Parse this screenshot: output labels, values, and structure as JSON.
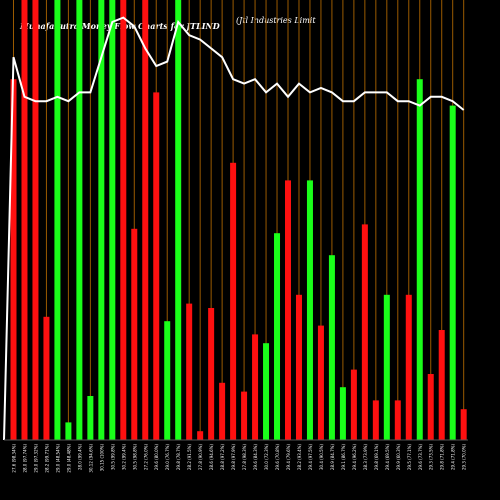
{
  "header": {
    "title": "MunafaSutra Money Flow Charts for JTLIND",
    "subtitle": "(Jtl Industries Limit"
  },
  "chart_data": {
    "type": "bar",
    "title": "MunafaSutra Money Flow Charts for JTLIND",
    "subtitle": "(Jtl Industries Limit",
    "grid": "vertical",
    "series": [
      {
        "colors": [
          "red",
          "red",
          "red",
          "red",
          "green",
          "green",
          "green",
          "green",
          "green",
          "green",
          "red",
          "red",
          "red",
          "red",
          "green",
          "green",
          "red",
          "red",
          "red",
          "red",
          "red",
          "red",
          "red",
          "green",
          "green",
          "red",
          "red",
          "green",
          "red",
          "green",
          "green",
          "red",
          "red",
          "red",
          "green",
          "red",
          "red",
          "green",
          "red",
          "red",
          "green",
          "red"
        ],
        "values": [
          82,
          100,
          100,
          28,
          100,
          4,
          100,
          10,
          100,
          100,
          100,
          48,
          100,
          79,
          27,
          100,
          31,
          2,
          30,
          13,
          63,
          11,
          24,
          22,
          47,
          59,
          33,
          59,
          26,
          42,
          12,
          16,
          49,
          9,
          33,
          9,
          33,
          82,
          15,
          25,
          76,
          7
        ]
      }
    ],
    "line": [
      87,
      78,
      77,
      77,
      78,
      77,
      79,
      79,
      87,
      95,
      96,
      94,
      89,
      85,
      86,
      95,
      92,
      91,
      89,
      87,
      82,
      81,
      82,
      79,
      81,
      78,
      81,
      79,
      80,
      79,
      77,
      77,
      79,
      79,
      79,
      77,
      77,
      76,
      78,
      78,
      77,
      75
    ],
    "x_labels": [
      "27.6 (98.34%)",
      "28.0 (97.74%)",
      "29.0 (97.32%)",
      "28.2 (99.71%)",
      "29.0 (48.54%)",
      "29.0 (48.48%)",
      "28.0 (99.4%)",
      "30.12 (94.6%)",
      "30.15 (100%)",
      "30.5 (99.8%)",
      "30.2 (99.4%)",
      "30.5 (98.8%)",
      "27.2 (76.0%)",
      "29.6 (80.0%)",
      "29.0 (76.7%)",
      "29.8 (78.7%)",
      "28.2 (91.5%)",
      "27.8 (90.9%)",
      "28.6 (94.6%)",
      "28.8 (97.2%)",
      "29.8 (97.9%)",
      "27.8 (98.3%)",
      "29.6 (84.3%)",
      "30.0 (72.3%)",
      "29.6 (70.8%)",
      "29.4 (79.6%)",
      "28.2 (93.4%)",
      "29.4 (97.5%)",
      "30.4 (90.5%)",
      "28.9 (84.7%)",
      "29.1 (86.7%)",
      "29.4 (96.2%)",
      "28.3 (73.9%)",
      "29.8 (69.1%)",
      "29.4 (69.5%)",
      "29.9 (60.3%)",
      "29.5 (77.1%)",
      "29.6 (73.7%)",
      "29.3 (73.5%)",
      "29.8 (71.8%)",
      "29.4 (71.8%)",
      "29.3 (70.0%)"
    ]
  }
}
